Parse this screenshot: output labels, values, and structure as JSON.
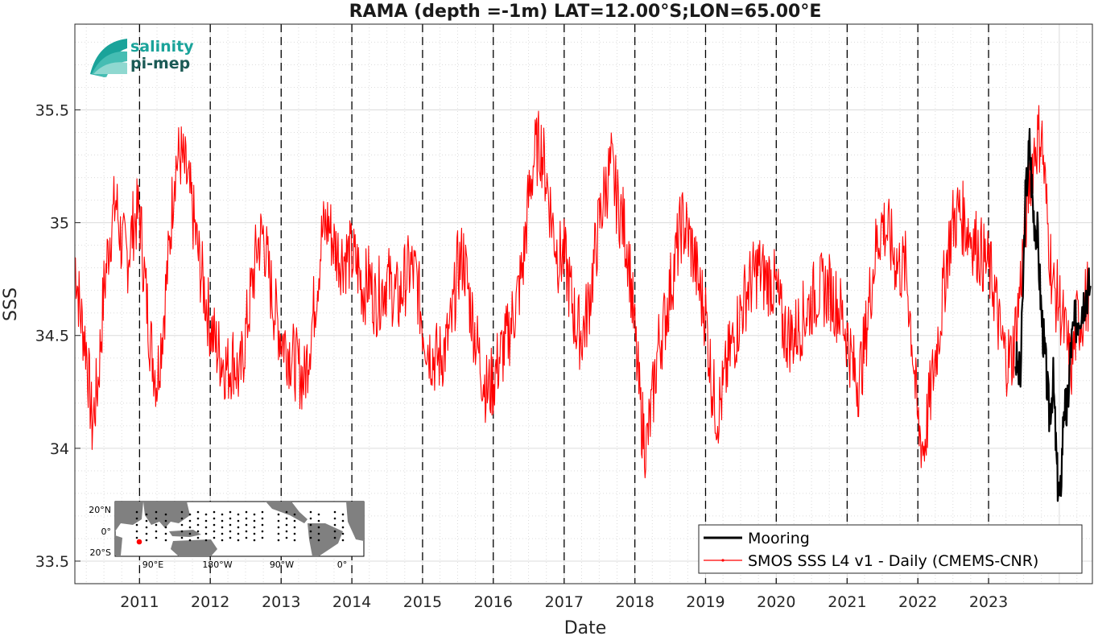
{
  "colors": {
    "mooring": "#000000",
    "smos": "#ff0000",
    "grid": "#dcdcdc",
    "logo_teal": "#1aa39a",
    "logo_dark": "#1b5a55",
    "map_land": "#808080",
    "map_marker": "#ff0000"
  },
  "logo": {
    "line1": "salinity",
    "line2": "pi-mep"
  },
  "inset_map": {
    "y_labels": [
      "20°N",
      "0°",
      "20°S"
    ],
    "x_labels": [
      "90°E",
      "180°W",
      "90°W",
      "0°"
    ],
    "marker_icon": "red-dot-icon"
  },
  "chart_data": {
    "type": "line",
    "title": "RAMA (depth =-1m) LAT=12.00°S;LON=65.00°E",
    "xlabel": "Date",
    "ylabel": "SSS",
    "xlim": [
      "2010-02-01",
      "2024-06-20"
    ],
    "ylim": [
      33.4,
      35.88
    ],
    "yticks": [
      33.5,
      34,
      34.5,
      35,
      35.5
    ],
    "ytick_labels": [
      "33.5",
      "34",
      "34.5",
      "35",
      "35.5"
    ],
    "xticks": [
      "2011-01-01",
      "2012-01-01",
      "2013-01-01",
      "2014-01-01",
      "2015-01-01",
      "2016-01-01",
      "2017-01-01",
      "2018-01-01",
      "2019-01-01",
      "2020-01-01",
      "2021-01-01",
      "2022-01-01",
      "2023-01-01"
    ],
    "xtick_labels": [
      "2011",
      "2012",
      "2013",
      "2014",
      "2015",
      "2016",
      "2017",
      "2018",
      "2019",
      "2020",
      "2021",
      "2022",
      "2023"
    ],
    "year_dividers": "dashed",
    "grid": true,
    "legend_position": "bottom-right",
    "series": [
      {
        "name": "Mooring",
        "color": "#000000",
        "x": [
          "2023-05-20",
          "2023-06-15",
          "2023-07-10",
          "2023-08-01",
          "2023-08-20",
          "2023-09-10",
          "2023-10-01",
          "2023-10-20",
          "2023-11-10",
          "2023-12-01",
          "2023-12-20",
          "2024-01-05",
          "2024-01-25",
          "2024-02-10",
          "2024-03-01",
          "2024-03-20",
          "2024-04-10",
          "2024-05-01",
          "2024-05-20",
          "2024-06-10"
        ],
        "y": [
          34.4,
          34.3,
          35.1,
          35.35,
          35.05,
          34.95,
          34.6,
          34.4,
          34.15,
          34.3,
          33.9,
          33.75,
          34.2,
          34.15,
          34.45,
          34.55,
          34.6,
          34.65,
          34.7,
          34.72
        ]
      },
      {
        "name": "SMOS SSS L4 v1 - Daily (CMEMS-CNR)",
        "color": "#ff0000",
        "x": [
          "2010-02-01",
          "2010-03-01",
          "2010-04-01",
          "2010-05-01",
          "2010-06-01",
          "2010-07-01",
          "2010-08-01",
          "2010-09-01",
          "2010-10-01",
          "2010-11-01",
          "2010-12-01",
          "2011-01-01",
          "2011-02-01",
          "2011-03-01",
          "2011-04-01",
          "2011-05-01",
          "2011-06-01",
          "2011-07-01",
          "2011-08-01",
          "2011-09-01",
          "2011-10-01",
          "2011-11-01",
          "2011-12-01",
          "2012-01-01",
          "2012-02-01",
          "2012-03-01",
          "2012-04-01",
          "2012-05-01",
          "2012-06-01",
          "2012-07-01",
          "2012-08-01",
          "2012-09-01",
          "2012-10-01",
          "2012-11-01",
          "2012-12-01",
          "2013-01-01",
          "2013-02-01",
          "2013-03-01",
          "2013-04-01",
          "2013-05-01",
          "2013-06-01",
          "2013-07-01",
          "2013-08-01",
          "2013-09-01",
          "2013-10-01",
          "2013-11-01",
          "2013-12-01",
          "2014-01-01",
          "2014-02-01",
          "2014-03-01",
          "2014-04-01",
          "2014-05-01",
          "2014-06-01",
          "2014-07-01",
          "2014-08-01",
          "2014-09-01",
          "2014-10-01",
          "2014-11-01",
          "2014-12-01",
          "2015-01-01",
          "2015-02-01",
          "2015-03-01",
          "2015-04-01",
          "2015-05-01",
          "2015-06-01",
          "2015-07-01",
          "2015-08-01",
          "2015-09-01",
          "2015-10-01",
          "2015-11-01",
          "2015-12-01",
          "2016-01-01",
          "2016-02-01",
          "2016-03-01",
          "2016-04-01",
          "2016-05-01",
          "2016-06-01",
          "2016-07-01",
          "2016-08-01",
          "2016-09-01",
          "2016-10-01",
          "2016-11-01",
          "2016-12-01",
          "2017-01-01",
          "2017-02-01",
          "2017-03-01",
          "2017-04-01",
          "2017-05-01",
          "2017-06-01",
          "2017-07-01",
          "2017-08-01",
          "2017-09-01",
          "2017-10-01",
          "2017-11-01",
          "2017-12-01",
          "2018-01-01",
          "2018-02-01",
          "2018-03-01",
          "2018-04-01",
          "2018-05-01",
          "2018-06-01",
          "2018-07-01",
          "2018-08-01",
          "2018-09-01",
          "2018-10-01",
          "2018-11-01",
          "2018-12-01",
          "2019-01-01",
          "2019-02-01",
          "2019-03-01",
          "2019-04-01",
          "2019-05-01",
          "2019-06-01",
          "2019-07-01",
          "2019-08-01",
          "2019-09-01",
          "2019-10-01",
          "2019-11-01",
          "2019-12-01",
          "2020-01-01",
          "2020-02-01",
          "2020-03-01",
          "2020-04-01",
          "2020-05-01",
          "2020-06-01",
          "2020-07-01",
          "2020-08-01",
          "2020-09-01",
          "2020-10-01",
          "2020-11-01",
          "2020-12-01",
          "2021-01-01",
          "2021-02-01",
          "2021-03-01",
          "2021-04-01",
          "2021-05-01",
          "2021-06-01",
          "2021-07-01",
          "2021-08-01",
          "2021-09-01",
          "2021-10-01",
          "2021-11-01",
          "2021-12-01",
          "2022-01-01",
          "2022-02-01",
          "2022-03-01",
          "2022-04-01",
          "2022-05-01",
          "2022-06-01",
          "2022-07-01",
          "2022-08-01",
          "2022-09-01",
          "2022-10-01",
          "2022-11-01",
          "2022-12-01",
          "2023-01-01",
          "2023-02-01",
          "2023-03-01",
          "2023-04-01",
          "2023-05-01",
          "2023-06-01",
          "2023-07-01",
          "2023-08-01",
          "2023-09-01",
          "2023-10-01",
          "2023-11-01",
          "2023-12-01",
          "2024-01-01",
          "2024-02-01",
          "2024-03-01",
          "2024-04-01",
          "2024-05-01",
          "2024-06-01"
        ],
        "y": [
          34.85,
          34.6,
          34.45,
          34.1,
          34.3,
          34.7,
          34.95,
          35.1,
          34.9,
          34.85,
          35.0,
          35.05,
          34.7,
          34.45,
          34.3,
          34.55,
          34.85,
          35.25,
          35.3,
          35.2,
          35.05,
          34.85,
          34.7,
          34.55,
          34.45,
          34.4,
          34.35,
          34.4,
          34.3,
          34.5,
          34.7,
          34.9,
          34.95,
          34.75,
          34.6,
          34.5,
          34.45,
          34.4,
          34.35,
          34.3,
          34.5,
          34.7,
          34.95,
          35.0,
          34.9,
          34.85,
          34.85,
          34.85,
          34.8,
          34.7,
          34.75,
          34.65,
          34.7,
          34.75,
          34.7,
          34.65,
          34.75,
          34.8,
          34.75,
          34.55,
          34.45,
          34.4,
          34.4,
          34.45,
          34.55,
          34.8,
          34.85,
          34.65,
          34.5,
          34.35,
          34.25,
          34.3,
          34.4,
          34.45,
          34.55,
          34.65,
          34.8,
          35.1,
          35.3,
          35.35,
          35.2,
          35.0,
          34.85,
          34.85,
          34.7,
          34.55,
          34.5,
          34.6,
          34.8,
          35.0,
          35.15,
          35.25,
          35.1,
          35.0,
          34.85,
          34.5,
          34.15,
          34.0,
          34.2,
          34.45,
          34.55,
          34.7,
          34.85,
          35.0,
          34.95,
          34.85,
          34.7,
          34.6,
          34.3,
          34.15,
          34.25,
          34.4,
          34.5,
          34.6,
          34.7,
          34.75,
          34.8,
          34.75,
          34.75,
          34.7,
          34.55,
          34.5,
          34.5,
          34.55,
          34.6,
          34.65,
          34.7,
          34.7,
          34.7,
          34.65,
          34.6,
          34.5,
          34.35,
          34.3,
          34.45,
          34.7,
          34.9,
          35.0,
          34.95,
          34.85,
          34.8,
          34.8,
          34.5,
          34.1,
          34.0,
          34.2,
          34.4,
          34.6,
          34.85,
          35.0,
          35.05,
          35.0,
          34.95,
          34.9,
          34.85,
          34.8,
          34.7,
          34.5,
          34.4,
          34.4,
          34.6,
          34.9,
          35.2,
          35.35,
          35.4,
          35.0,
          34.7,
          34.65,
          34.5,
          34.35,
          34.55,
          34.6,
          34.7
        ]
      }
    ]
  }
}
